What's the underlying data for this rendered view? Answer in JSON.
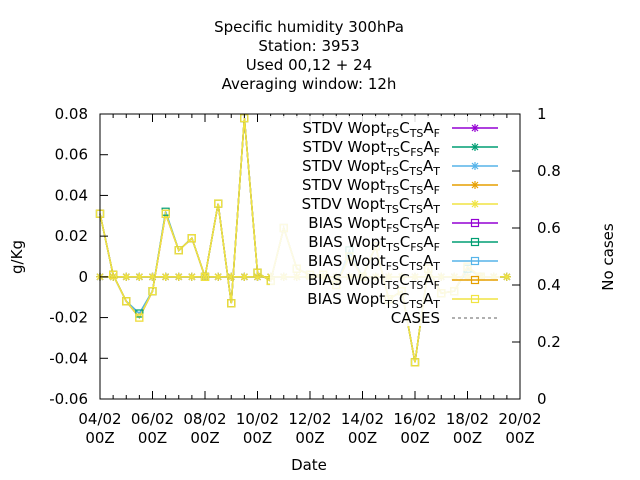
{
  "chart_data": {
    "type": "line",
    "title_lines": [
      "Specific humidity 300hPa",
      "Station:      3953",
      "Used  00,12  + 24",
      "Averaging window: 12h"
    ],
    "xlabel": "Date",
    "ylabel": "g/Kg",
    "y2label": "No cases",
    "ylim": [
      -0.06,
      0.08
    ],
    "y2lim": [
      0,
      1
    ],
    "yticks": [
      "0.08",
      "0.06",
      "0.04",
      "0.02",
      "0",
      "-0.02",
      "-0.04",
      "-0.06"
    ],
    "y2ticks": [
      "1",
      "0.8",
      "0.6",
      "0.4",
      "0.2",
      "0"
    ],
    "xtick_labels": [
      [
        "04/02",
        "00Z"
      ],
      [
        "06/02",
        "00Z"
      ],
      [
        "08/02",
        "00Z"
      ],
      [
        "10/02",
        "00Z"
      ],
      [
        "12/02",
        "00Z"
      ],
      [
        "14/02",
        "00Z"
      ],
      [
        "16/02",
        "00Z"
      ],
      [
        "18/02",
        "00Z"
      ],
      [
        "20/02",
        "00Z"
      ]
    ],
    "x_days": [
      0,
      0.5,
      1,
      1.5,
      2,
      2.5,
      3,
      3.5,
      4,
      4.5,
      5,
      5.5,
      6,
      6.5,
      7,
      7.5,
      8,
      8.5,
      9,
      9.5,
      10,
      10.5,
      11,
      11.5,
      12,
      12.5,
      13,
      13.5,
      14,
      14.5,
      15,
      15.5
    ],
    "legend": [
      {
        "text": "STDV Wopt",
        "subs": [
          "FS",
          "T",
          "S",
          "F"
        ],
        "color": "#9400d3",
        "marker": "star"
      },
      {
        "text": "STDV Wopt",
        "subs": [
          "TS",
          "F",
          "S",
          "F"
        ],
        "color": "#009e73",
        "marker": "star"
      },
      {
        "text": "STDV Wopt",
        "subs": [
          "FS",
          "T",
          "S",
          "T"
        ],
        "color": "#56b4e9",
        "marker": "star"
      },
      {
        "text": "STDV Wopt",
        "subs": [
          "TS",
          "T",
          "S",
          "F"
        ],
        "color": "#e69f00",
        "marker": "star"
      },
      {
        "text": "STDV Wopt",
        "subs": [
          "TS",
          "T",
          "S",
          "T"
        ],
        "color": "#f0e442",
        "marker": "star"
      },
      {
        "text": "BIAS Wopt",
        "subs": [
          "FS",
          "T",
          "S",
          "F"
        ],
        "color": "#9400d3",
        "marker": "square"
      },
      {
        "text": "BIAS Wopt",
        "subs": [
          "TS",
          "F",
          "S",
          "F"
        ],
        "color": "#009e73",
        "marker": "square"
      },
      {
        "text": "BIAS Wopt",
        "subs": [
          "FS",
          "T",
          "S",
          "T"
        ],
        "color": "#56b4e9",
        "marker": "square"
      },
      {
        "text": "BIAS Wopt",
        "subs": [
          "TS",
          "T",
          "S",
          "F"
        ],
        "color": "#e69f00",
        "marker": "square"
      },
      {
        "text": "BIAS Wopt",
        "subs": [
          "TS",
          "T",
          "S",
          "T"
        ],
        "color": "#f0e442",
        "marker": "square"
      },
      {
        "text": "CASES",
        "subs": [],
        "color": "#808080",
        "marker": "dash"
      }
    ],
    "series": {
      "stdv": [
        0,
        0,
        0,
        0,
        0,
        0,
        0,
        0,
        0,
        0,
        0,
        0,
        0,
        0,
        0,
        0,
        0,
        0,
        0,
        0,
        0,
        0,
        0,
        0,
        0,
        0,
        0,
        0,
        0,
        0,
        0,
        0
      ],
      "bias_main": [
        0.031,
        0.001,
        -0.012,
        -0.02,
        -0.007,
        0.031,
        0.013,
        0.019,
        0.0,
        0.036,
        -0.013,
        0.078,
        0.002,
        -0.002,
        0.024,
        0.004,
        0.001,
        0.001,
        -0.004,
        0.01,
        0.0,
        0.015,
        -0.011,
        -0.007,
        -0.042,
        0.004,
        -0.008,
        -0.007,
        0.005,
        0.0
      ],
      "bias_green": [
        0.031,
        0.001,
        -0.012,
        -0.018,
        -0.007,
        0.032,
        0.013,
        0.019,
        0.0,
        0.036,
        -0.013,
        0.078,
        0.002,
        -0.002,
        0.024,
        0.004,
        0.001,
        0.001,
        -0.004,
        0.013,
        0.0,
        0.015,
        -0.011,
        -0.007,
        -0.042,
        0.004,
        -0.008,
        -0.007,
        0.004,
        0.0
      ]
    }
  }
}
